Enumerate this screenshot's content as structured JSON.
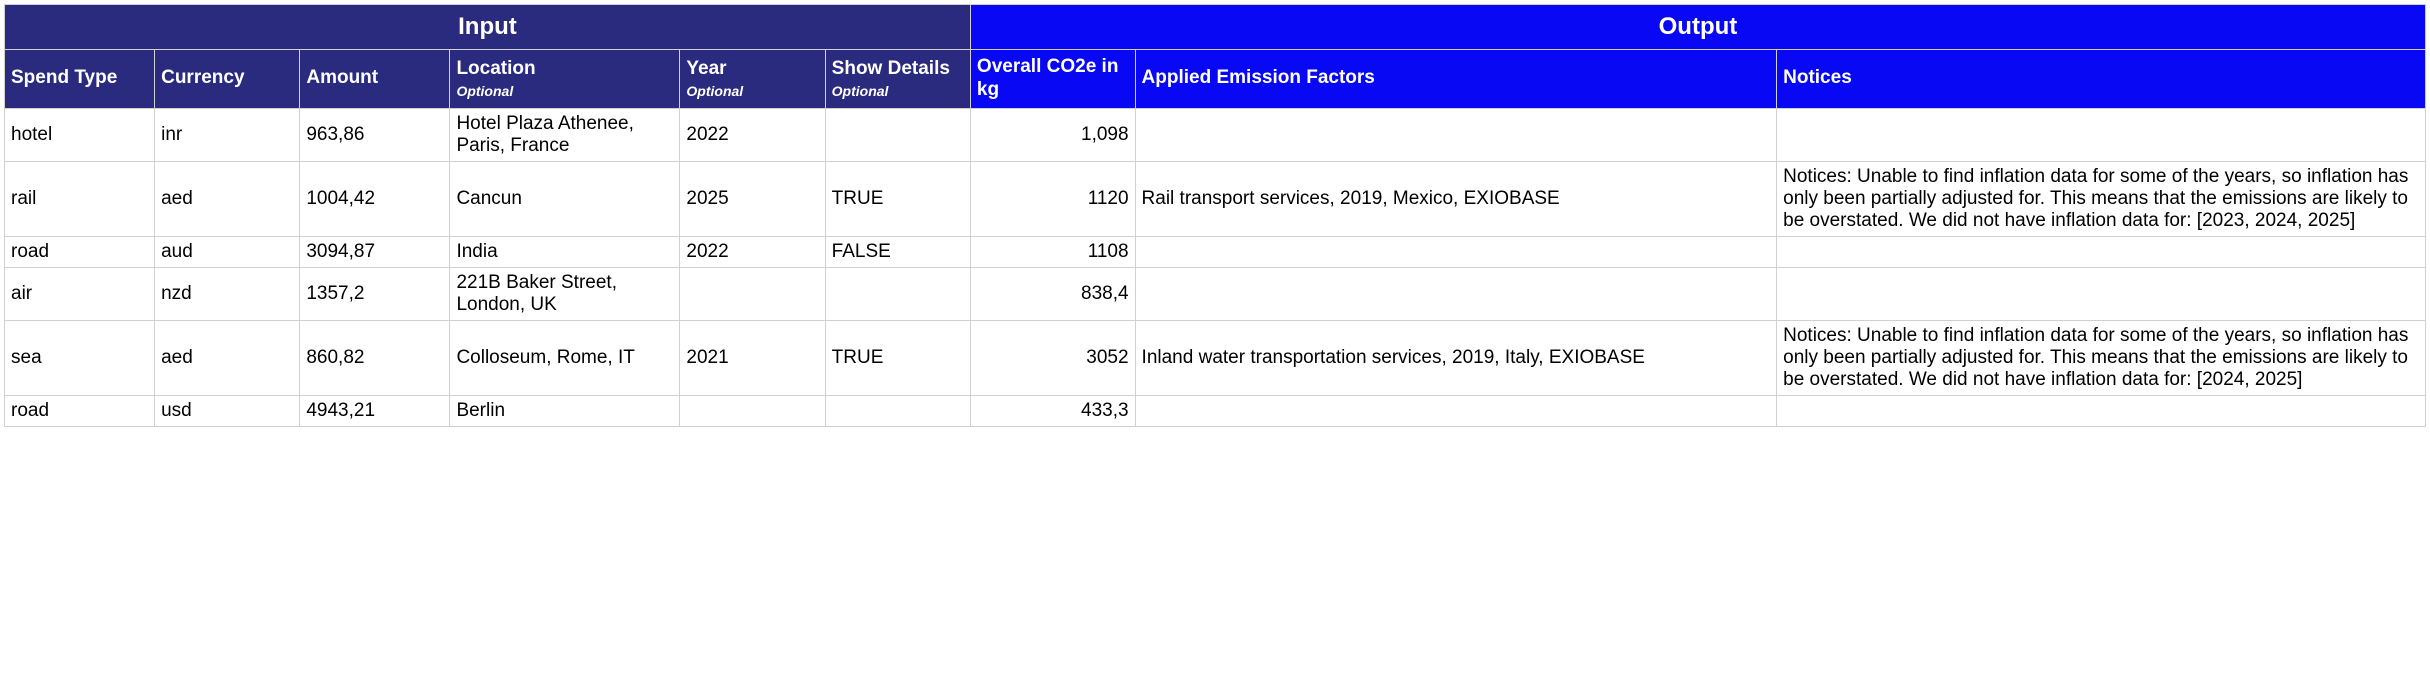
{
  "colors": {
    "input_header_bg": "#2a2a7f",
    "output_header_bg": "#0808f4",
    "header_text": "#ffffff",
    "border": "#d0d0d0",
    "body_bg": "#ffffff",
    "body_text": "#000000"
  },
  "group_headers": {
    "input": "Input",
    "output": "Output"
  },
  "columns": {
    "spend_type": {
      "label": "Spend Type",
      "optional": ""
    },
    "currency": {
      "label": "Currency",
      "optional": ""
    },
    "amount": {
      "label": "Amount",
      "optional": ""
    },
    "location": {
      "label": "Location",
      "optional": "Optional"
    },
    "year": {
      "label": "Year",
      "optional": "Optional"
    },
    "show_details": {
      "label": "Show Details",
      "optional": "Optional"
    },
    "overall_co2e": {
      "label": "Overall CO2e in kg",
      "optional": ""
    },
    "applied_ef": {
      "label": "Applied Emission Factors",
      "optional": ""
    },
    "notices": {
      "label": "Notices",
      "optional": ""
    }
  },
  "rows": [
    {
      "spend_type": "hotel",
      "currency": "inr",
      "amount": "963,86",
      "location": "Hotel Plaza Athenee, Paris, France",
      "year": "2022",
      "show_details": "",
      "overall_co2e": "1,098",
      "applied_ef": "",
      "notices": ""
    },
    {
      "spend_type": "rail",
      "currency": "aed",
      "amount": "1004,42",
      "location": "Cancun",
      "year": "2025",
      "show_details": "TRUE",
      "overall_co2e": "1120",
      "applied_ef": "Rail transport services, 2019, Mexico, EXIOBASE",
      "notices": "Notices: Unable to find inflation data for some of the years, so inflation has only been partially adjusted for. This means that the emissions are likely to be overstated. We did not have inflation data for: [2023, 2024, 2025]"
    },
    {
      "spend_type": "road",
      "currency": "aud",
      "amount": "3094,87",
      "location": "India",
      "year": "2022",
      "show_details": "FALSE",
      "overall_co2e": "1108",
      "applied_ef": "",
      "notices": ""
    },
    {
      "spend_type": "air",
      "currency": "nzd",
      "amount": "1357,2",
      "location": "221B Baker Street, London, UK",
      "year": "",
      "show_details": "",
      "overall_co2e": "838,4",
      "applied_ef": "",
      "notices": ""
    },
    {
      "spend_type": "sea",
      "currency": "aed",
      "amount": "860,82",
      "location": "Colloseum, Rome, IT",
      "year": "2021",
      "show_details": "TRUE",
      "overall_co2e": "3052",
      "applied_ef": "Inland water transportation services, 2019, Italy, EXIOBASE",
      "notices": "Notices: Unable to find inflation data for some of the years, so inflation has only been partially adjusted for. This means that the emissions are likely to be overstated. We did not have inflation data for: [2024, 2025]"
    },
    {
      "spend_type": "road",
      "currency": "usd",
      "amount": "4943,21",
      "location": "Berlin",
      "year": "",
      "show_details": "",
      "overall_co2e": "433,3",
      "applied_ef": "",
      "notices": ""
    }
  ]
}
